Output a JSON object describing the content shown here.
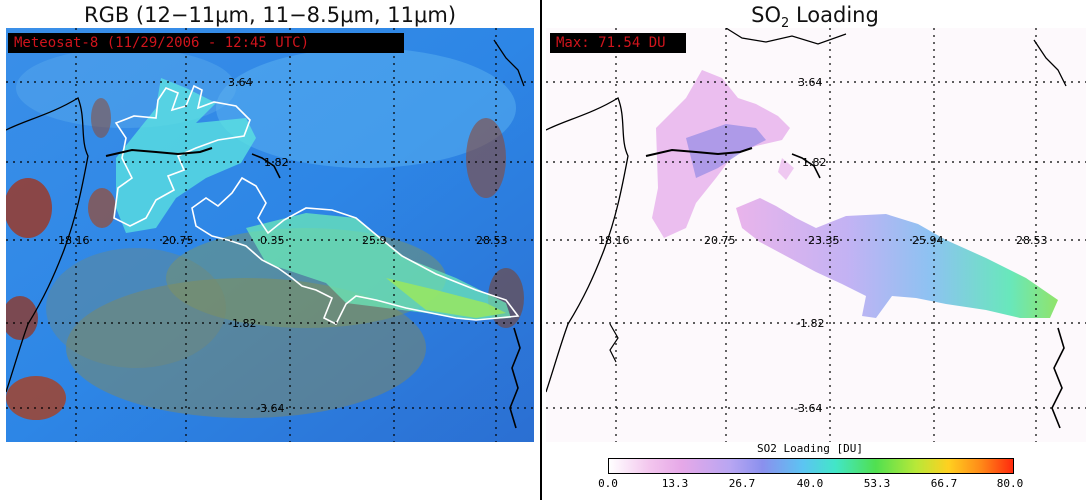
{
  "left_panel": {
    "title_prefix": "RGB (12−11",
    "title_unit_1": "μm",
    "title_mid_1": ", 11−8.5",
    "title_unit_2": "μm",
    "title_mid_2": ", 11",
    "title_unit_3": "μm",
    "title_suffix": ")",
    "tag": "Meteosat-8  (11/29/2006 - 12:45 UTC)"
  },
  "right_panel": {
    "title_main": "SO",
    "title_sub": "2",
    "title_rest": " Loading",
    "tag": "Max: 71.54 DU"
  },
  "grid_labels": {
    "lat": [
      "3.64",
      "1.82",
      "-1.82",
      "-3.64"
    ],
    "lon": [
      "18.16",
      "20.75",
      "23.35",
      "25.94",
      "28.53"
    ],
    "lon_left_display": [
      "18.16",
      "20.75",
      "0.35",
      "25.9",
      "28.53"
    ]
  },
  "colorbar": {
    "title": "SO2 Loading [DU]",
    "ticks": [
      "0.0",
      "13.3",
      "26.7",
      "40.0",
      "53.3",
      "66.7",
      "80.0"
    ],
    "colors": [
      "#ffffff",
      "#e6a8e8",
      "#8a90ee",
      "#5cc4f2",
      "#50e050",
      "#ffd020",
      "#ff2a0e"
    ]
  },
  "colors": {
    "tag_background": "#000000",
    "tag_text": "#d0141c",
    "plume_outline": "#ffffff",
    "coastline": "#000000"
  }
}
